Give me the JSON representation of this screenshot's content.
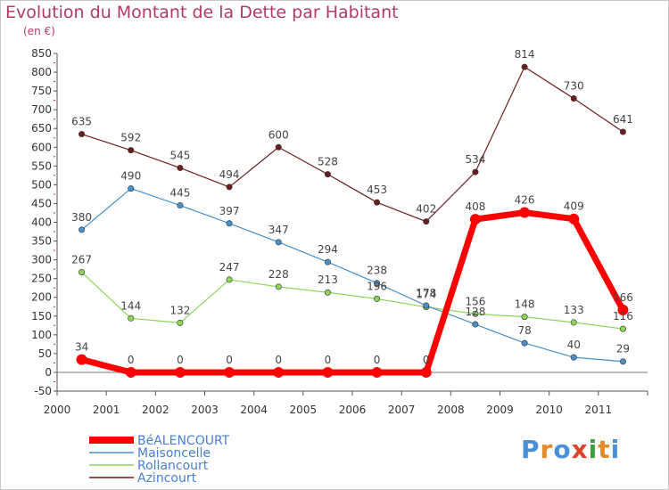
{
  "title": "Evolution du Montant de la Dette par Habitant",
  "subtitle": "(en €)",
  "logo": "Proxiti",
  "chart_data": {
    "type": "line",
    "title": "Evolution du Montant de la Dette par Habitant",
    "ylabel": "(en €)",
    "xlabel": "",
    "x": [
      2000,
      2001,
      2002,
      2003,
      2004,
      2005,
      2006,
      2007,
      2008,
      2009,
      2010,
      2011
    ],
    "ylim": [
      -50,
      850
    ],
    "yticks": [
      -50,
      0,
      50,
      100,
      150,
      200,
      250,
      300,
      350,
      400,
      450,
      500,
      550,
      600,
      650,
      700,
      750,
      800,
      850
    ],
    "grid": false,
    "legend_position": "bottom-left",
    "series": [
      {
        "name": "BéALENCOURT",
        "color": "#ff0000",
        "values": [
          34,
          0,
          0,
          0,
          0,
          0,
          0,
          0,
          408,
          426,
          409,
          166
        ]
      },
      {
        "name": "Maisoncelle",
        "color": "#4a90c8",
        "values": [
          380,
          490,
          445,
          397,
          347,
          294,
          238,
          178,
          128,
          78,
          40,
          29
        ]
      },
      {
        "name": "Rollancourt",
        "color": "#8fd45a",
        "values": [
          267,
          144,
          132,
          247,
          228,
          213,
          196,
          174,
          156,
          148,
          133,
          116
        ]
      },
      {
        "name": "Azincourt",
        "color": "#6b1e1e",
        "values": [
          635,
          592,
          545,
          494,
          600,
          528,
          453,
          402,
          534,
          814,
          730,
          641
        ]
      }
    ]
  }
}
